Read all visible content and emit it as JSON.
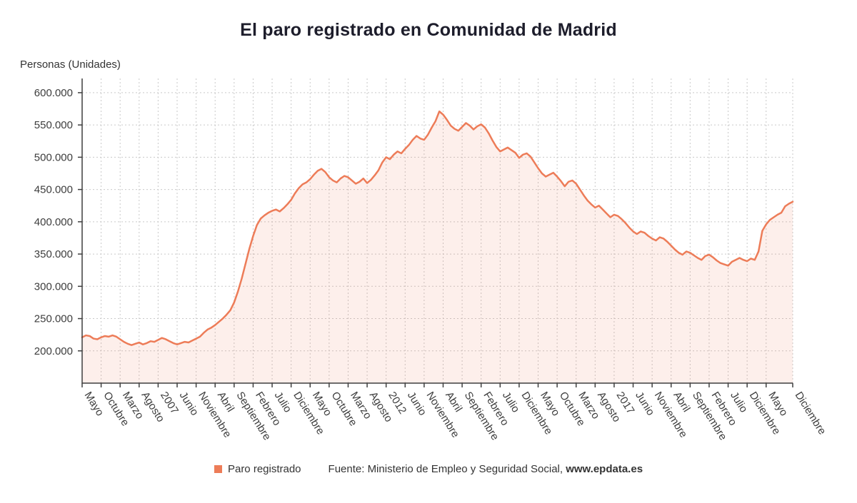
{
  "title": "El paro registrado en Comunidad de Madrid",
  "y_axis_title": "Personas (Unidades)",
  "legend": {
    "series_label": "Paro registrado",
    "source_prefix": "Fuente: Ministerio de Empleo y Seguridad Social, ",
    "source_site": "www.epdata.es"
  },
  "colors": {
    "line": "#ed7c58",
    "area": "rgba(237,124,88,0.12)",
    "grid": "#c9c9c9",
    "axis": "#3f3f3f",
    "text": "#3d3d3d",
    "title_text": "#1d1d2b"
  },
  "chart_data": {
    "type": "area",
    "title": "El paro registrado en Comunidad de Madrid",
    "ylabel": "Personas (Unidades)",
    "xlabel": "",
    "x_start": "Mayo 2005",
    "x_end": "Diciembre 2020",
    "frequency": "monthly",
    "grid": true,
    "legend_position": "bottom",
    "ylim": [
      150000,
      622000
    ],
    "y_ticks": [
      {
        "v": 200000,
        "label": "200.000"
      },
      {
        "v": 250000,
        "label": "250.000"
      },
      {
        "v": 300000,
        "label": "300.000"
      },
      {
        "v": 350000,
        "label": "350.000"
      },
      {
        "v": 400000,
        "label": "400.000"
      },
      {
        "v": 450000,
        "label": "450.000"
      },
      {
        "v": 500000,
        "label": "500.000"
      },
      {
        "v": 550000,
        "label": "550.000"
      },
      {
        "v": 600000,
        "label": "600.000"
      }
    ],
    "x_ticks": [
      {
        "i": 0,
        "label": "Mayo"
      },
      {
        "i": 5,
        "label": "Octubre"
      },
      {
        "i": 10,
        "label": "Marzo"
      },
      {
        "i": 15,
        "label": "Agosto"
      },
      {
        "i": 20,
        "label": "2007"
      },
      {
        "i": 25,
        "label": "Junio"
      },
      {
        "i": 30,
        "label": "Noviembre"
      },
      {
        "i": 35,
        "label": "Abril"
      },
      {
        "i": 40,
        "label": "Septiembre"
      },
      {
        "i": 45,
        "label": "Febrero"
      },
      {
        "i": 50,
        "label": "Julio"
      },
      {
        "i": 55,
        "label": "Diciembre"
      },
      {
        "i": 60,
        "label": "Mayo"
      },
      {
        "i": 65,
        "label": "Octubre"
      },
      {
        "i": 70,
        "label": "Marzo"
      },
      {
        "i": 75,
        "label": "Agosto"
      },
      {
        "i": 80,
        "label": "2012"
      },
      {
        "i": 85,
        "label": "Junio"
      },
      {
        "i": 90,
        "label": "Noviembre"
      },
      {
        "i": 95,
        "label": "Abril"
      },
      {
        "i": 100,
        "label": "Septiembre"
      },
      {
        "i": 105,
        "label": "Febrero"
      },
      {
        "i": 110,
        "label": "Julio"
      },
      {
        "i": 115,
        "label": "Diciembre"
      },
      {
        "i": 120,
        "label": "Mayo"
      },
      {
        "i": 125,
        "label": "Octubre"
      },
      {
        "i": 130,
        "label": "Marzo"
      },
      {
        "i": 135,
        "label": "Agosto"
      },
      {
        "i": 140,
        "label": "2017"
      },
      {
        "i": 145,
        "label": "Junio"
      },
      {
        "i": 150,
        "label": "Noviembre"
      },
      {
        "i": 155,
        "label": "Abril"
      },
      {
        "i": 160,
        "label": "Septiembre"
      },
      {
        "i": 165,
        "label": "Febrero"
      },
      {
        "i": 170,
        "label": "Julio"
      },
      {
        "i": 175,
        "label": "Diciembre"
      },
      {
        "i": 180,
        "label": "Mayo"
      },
      {
        "i": 187,
        "label": "Diciembre"
      }
    ],
    "series": [
      {
        "name": "Paro registrado",
        "values": [
          221000,
          224000,
          223000,
          219000,
          218000,
          221000,
          223000,
          222000,
          224000,
          222000,
          218000,
          214000,
          211000,
          209000,
          211000,
          213000,
          210000,
          212000,
          215000,
          214000,
          217000,
          220000,
          218000,
          215000,
          212000,
          210000,
          212000,
          214000,
          213000,
          216000,
          219000,
          222000,
          228000,
          233000,
          236000,
          240000,
          245000,
          250000,
          256000,
          263000,
          275000,
          292000,
          312000,
          335000,
          358000,
          378000,
          395000,
          405000,
          410000,
          414000,
          417000,
          419000,
          416000,
          421000,
          427000,
          434000,
          444000,
          452000,
          458000,
          461000,
          466000,
          473000,
          479000,
          482000,
          477000,
          469000,
          464000,
          461000,
          467000,
          471000,
          469000,
          464000,
          459000,
          462000,
          467000,
          460000,
          465000,
          472000,
          480000,
          492000,
          500000,
          497000,
          504000,
          509000,
          506000,
          513000,
          519000,
          527000,
          533000,
          529000,
          527000,
          535000,
          546000,
          556000,
          571000,
          566000,
          558000,
          549000,
          544000,
          541000,
          547000,
          553000,
          549000,
          543000,
          548000,
          551000,
          546000,
          537000,
          526000,
          516000,
          509000,
          512000,
          515000,
          511000,
          507000,
          499000,
          504000,
          506000,
          501000,
          492000,
          483000,
          475000,
          470000,
          473000,
          476000,
          470000,
          463000,
          455000,
          462000,
          464000,
          459000,
          450000,
          441000,
          433000,
          427000,
          422000,
          425000,
          419000,
          413000,
          407000,
          411000,
          409000,
          404000,
          398000,
          391000,
          385000,
          381000,
          385000,
          383000,
          378000,
          374000,
          371000,
          376000,
          374000,
          369000,
          363000,
          357000,
          352000,
          349000,
          354000,
          352000,
          348000,
          344000,
          341000,
          347000,
          349000,
          345000,
          340000,
          336000,
          334000,
          332000,
          338000,
          341000,
          344000,
          341000,
          339000,
          343000,
          341000,
          354000,
          386000,
          396000,
          403000,
          407000,
          411000,
          414000,
          424000,
          428000,
          431000
        ]
      }
    ]
  }
}
